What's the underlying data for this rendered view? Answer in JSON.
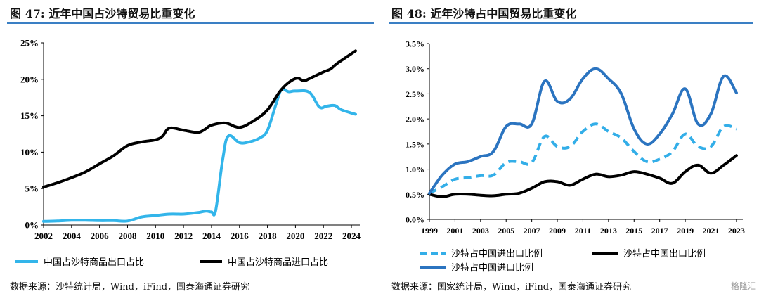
{
  "figures": [
    {
      "title": "图 47:  近年中国占沙特贸易比重变化",
      "source": "数据来源：沙特统计局，Wind，iFind，国泰海通证券研究"
    },
    {
      "title": "图 48:  近年沙特占中国贸易比重变化",
      "source": "数据来源：国家统计局，Wind，iFind，国泰海通证券研究"
    }
  ],
  "watermark": "格隆汇",
  "chart_data": [
    {
      "type": "line",
      "title": "图 47:  近年中国占沙特贸易比重变化",
      "x_ticks": [
        2002,
        2004,
        2006,
        2008,
        2010,
        2012,
        2014,
        2016,
        2018,
        2020,
        2022,
        2024
      ],
      "xlim": [
        2002,
        2024.6
      ],
      "ylim": [
        0,
        25
      ],
      "y_ticks": [
        0,
        5,
        10,
        15,
        20,
        25
      ],
      "y_tick_labels": [
        "0%",
        "5%",
        "10%",
        "15%",
        "20%",
        "25%"
      ],
      "legend_position": "bottom",
      "series": [
        {
          "name": "中国占沙特商品出口占比",
          "color": "#33b5ea",
          "dash": "solid",
          "points": [
            [
              2002,
              0.5
            ],
            [
              2003,
              0.55
            ],
            [
              2004,
              0.65
            ],
            [
              2005,
              0.65
            ],
            [
              2006,
              0.6
            ],
            [
              2007,
              0.6
            ],
            [
              2008,
              0.55
            ],
            [
              2009,
              1.1
            ],
            [
              2010,
              1.3
            ],
            [
              2011,
              1.5
            ],
            [
              2012,
              1.5
            ],
            [
              2013,
              1.7
            ],
            [
              2013.6,
              1.9
            ],
            [
              2014,
              1.8
            ],
            [
              2014.3,
              2.0
            ],
            [
              2014.8,
              9.0
            ],
            [
              2015.2,
              12.2
            ],
            [
              2016,
              11.3
            ],
            [
              2016.7,
              11.4
            ],
            [
              2017.5,
              12.0
            ],
            [
              2018,
              13.0
            ],
            [
              2018.6,
              16.5
            ],
            [
              2019,
              18.6
            ],
            [
              2019.5,
              18.3
            ],
            [
              2020,
              18.4
            ],
            [
              2021,
              18.2
            ],
            [
              2021.7,
              16.2
            ],
            [
              2022.2,
              16.3
            ],
            [
              2022.8,
              16.4
            ],
            [
              2023.3,
              15.8
            ],
            [
              2024.3,
              15.2
            ]
          ]
        },
        {
          "name": "中国占沙特商品进口占比",
          "color": "#000000",
          "dash": "solid",
          "points": [
            [
              2002,
              5.2
            ],
            [
              2003,
              5.8
            ],
            [
              2004,
              6.5
            ],
            [
              2005,
              7.3
            ],
            [
              2006,
              8.4
            ],
            [
              2007,
              9.5
            ],
            [
              2008,
              10.9
            ],
            [
              2009,
              11.4
            ],
            [
              2010,
              11.7
            ],
            [
              2010.5,
              12.2
            ],
            [
              2011,
              13.3
            ],
            [
              2012,
              13.0
            ],
            [
              2013,
              12.7
            ],
            [
              2013.5,
              13.1
            ],
            [
              2014,
              13.7
            ],
            [
              2015,
              14.0
            ],
            [
              2016,
              13.4
            ],
            [
              2017,
              14.3
            ],
            [
              2018,
              15.8
            ],
            [
              2019,
              18.6
            ],
            [
              2020,
              20.1
            ],
            [
              2020.6,
              19.8
            ],
            [
              2021,
              20.1
            ],
            [
              2022,
              21.0
            ],
            [
              2022.5,
              21.4
            ],
            [
              2023,
              22.2
            ],
            [
              2024.3,
              23.9
            ]
          ]
        }
      ]
    },
    {
      "type": "line",
      "title": "图 48:  近年沙特占中国贸易比重变化",
      "x_ticks": [
        1999,
        2001,
        2003,
        2005,
        2007,
        2009,
        2011,
        2013,
        2015,
        2017,
        2019,
        2021,
        2023
      ],
      "xlim": [
        1999,
        2023.5
      ],
      "ylim": [
        0,
        3.5
      ],
      "y_ticks": [
        0,
        0.5,
        1,
        1.5,
        2,
        2.5,
        3,
        3.5
      ],
      "y_tick_labels": [
        "0.0%",
        "0.5%",
        "1.0%",
        "1.5%",
        "2.0%",
        "2.5%",
        "3.0%",
        "3.5%"
      ],
      "legend_position": "bottom",
      "series": [
        {
          "name": "沙特占中国进出口比例",
          "color": "#33aee8",
          "dash": "dashed",
          "points": [
            [
              1999,
              0.52
            ],
            [
              2000,
              0.65
            ],
            [
              2001,
              0.8
            ],
            [
              2002,
              0.83
            ],
            [
              2003,
              0.87
            ],
            [
              2004,
              0.88
            ],
            [
              2005,
              1.13
            ],
            [
              2006,
              1.15
            ],
            [
              2007,
              1.13
            ],
            [
              2008,
              1.65
            ],
            [
              2009,
              1.45
            ],
            [
              2010,
              1.45
            ],
            [
              2011,
              1.75
            ],
            [
              2012,
              1.9
            ],
            [
              2013,
              1.75
            ],
            [
              2014,
              1.62
            ],
            [
              2015,
              1.35
            ],
            [
              2016,
              1.15
            ],
            [
              2017,
              1.2
            ],
            [
              2018,
              1.35
            ],
            [
              2019,
              1.7
            ],
            [
              2020,
              1.45
            ],
            [
              2021,
              1.45
            ],
            [
              2022,
              1.85
            ],
            [
              2023,
              1.8
            ]
          ]
        },
        {
          "name": "沙特占中国出口比例",
          "color": "#000000",
          "dash": "solid",
          "points": [
            [
              1999,
              0.5
            ],
            [
              2000,
              0.45
            ],
            [
              2001,
              0.5
            ],
            [
              2002,
              0.5
            ],
            [
              2003,
              0.48
            ],
            [
              2004,
              0.47
            ],
            [
              2005,
              0.5
            ],
            [
              2006,
              0.52
            ],
            [
              2007,
              0.62
            ],
            [
              2008,
              0.75
            ],
            [
              2009,
              0.75
            ],
            [
              2010,
              0.68
            ],
            [
              2011,
              0.8
            ],
            [
              2012,
              0.9
            ],
            [
              2013,
              0.85
            ],
            [
              2014,
              0.88
            ],
            [
              2015,
              0.95
            ],
            [
              2016,
              0.9
            ],
            [
              2017,
              0.82
            ],
            [
              2018,
              0.72
            ],
            [
              2019,
              0.95
            ],
            [
              2020,
              1.08
            ],
            [
              2021,
              0.92
            ],
            [
              2022,
              1.08
            ],
            [
              2023,
              1.27
            ]
          ]
        },
        {
          "name": "沙特占中国进口比例",
          "color": "#2b74c0",
          "dash": "solid",
          "points": [
            [
              1999,
              0.52
            ],
            [
              2000,
              0.88
            ],
            [
              2001,
              1.1
            ],
            [
              2002,
              1.15
            ],
            [
              2003,
              1.25
            ],
            [
              2004,
              1.35
            ],
            [
              2005,
              1.85
            ],
            [
              2006,
              1.9
            ],
            [
              2007,
              1.9
            ],
            [
              2008,
              2.75
            ],
            [
              2009,
              2.35
            ],
            [
              2010,
              2.4
            ],
            [
              2011,
              2.8
            ],
            [
              2012,
              3.0
            ],
            [
              2013,
              2.8
            ],
            [
              2014,
              2.5
            ],
            [
              2015,
              1.8
            ],
            [
              2016,
              1.5
            ],
            [
              2017,
              1.7
            ],
            [
              2018,
              2.1
            ],
            [
              2019,
              2.6
            ],
            [
              2020,
              1.9
            ],
            [
              2021,
              2.1
            ],
            [
              2022,
              2.85
            ],
            [
              2023,
              2.52
            ]
          ]
        }
      ]
    }
  ]
}
